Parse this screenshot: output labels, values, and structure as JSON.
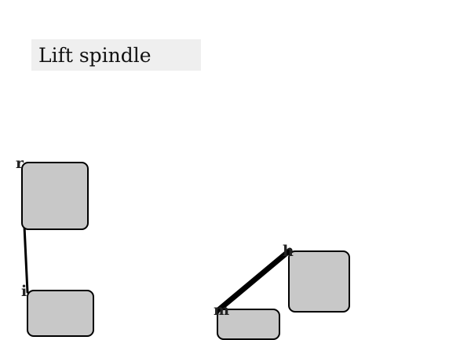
{
  "title": "Lift spindle",
  "nodes": [
    {
      "name": "node-a",
      "handle": "r"
    },
    {
      "name": "node-b",
      "handle": "i"
    },
    {
      "name": "node-c",
      "handle": "h"
    },
    {
      "name": "node-d",
      "handle": "m"
    }
  ]
}
